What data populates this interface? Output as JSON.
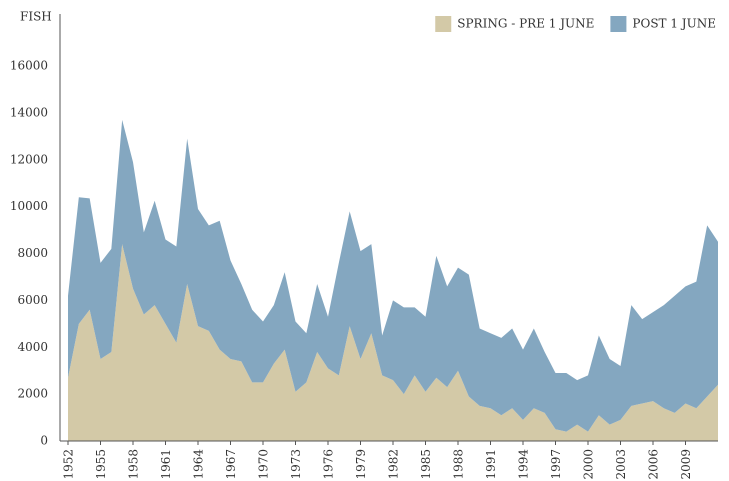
{
  "chart_data": {
    "type": "stacked_area",
    "y_label": "FISH",
    "x": [
      1952,
      1953,
      1954,
      1955,
      1956,
      1957,
      1958,
      1959,
      1960,
      1961,
      1962,
      1963,
      1964,
      1965,
      1966,
      1967,
      1968,
      1969,
      1970,
      1971,
      1972,
      1973,
      1974,
      1975,
      1976,
      1977,
      1978,
      1979,
      1980,
      1981,
      1982,
      1983,
      1984,
      1985,
      1986,
      1987,
      1988,
      1989,
      1990,
      1991,
      1992,
      1993,
      1994,
      1995,
      1996,
      1997,
      1998,
      1999,
      2000,
      2001,
      2002,
      2003,
      2004,
      2005,
      2006,
      2007,
      2008,
      2009,
      2010,
      2011,
      2012
    ],
    "series": [
      {
        "name": "SPRING - PRE 1 JUNE",
        "color": "#d3c9a7",
        "values": [
          2700,
          5000,
          5600,
          3500,
          3800,
          8400,
          6500,
          5400,
          5800,
          5000,
          4200,
          6700,
          4900,
          4700,
          3900,
          3500,
          3400,
          2500,
          2500,
          3300,
          3900,
          2100,
          2500,
          3800,
          3100,
          2800,
          4900,
          3500,
          4600,
          2800,
          2600,
          2000,
          2800,
          2100,
          2700,
          2300,
          3000,
          1900,
          1500,
          1400,
          1100,
          1400,
          900,
          1400,
          1200,
          500,
          400,
          700,
          400,
          1100,
          700,
          900,
          1500,
          1600,
          1700,
          1400,
          1200,
          1600,
          1400,
          1900,
          2400
        ]
      },
      {
        "name": "POST 1 JUNE",
        "color": "#84a7c0",
        "values": [
          3500,
          5400,
          4750,
          4100,
          4400,
          5300,
          5400,
          3500,
          4450,
          3600,
          4100,
          6200,
          5000,
          4500,
          5500,
          4200,
          3300,
          3100,
          2600,
          2500,
          3300,
          3000,
          2100,
          2900,
          2200,
          4800,
          4900,
          4600,
          3800,
          1700,
          3400,
          3700,
          2900,
          3200,
          5200,
          4300,
          4400,
          5200,
          3300,
          3200,
          3300,
          3400,
          3000,
          3400,
          2600,
          2400,
          2500,
          1900,
          2400,
          3400,
          2800,
          2300,
          4300,
          3600,
          3800,
          4400,
          5000,
          5000,
          5400,
          7300,
          6100
        ]
      }
    ],
    "xlim": [
      1952,
      2012
    ],
    "xticks": [
      1952,
      1955,
      1958,
      1961,
      1964,
      1967,
      1970,
      1973,
      1976,
      1979,
      1982,
      1985,
      1988,
      1991,
      1994,
      1997,
      2000,
      2003,
      2006,
      2009
    ],
    "ylim": [
      0,
      16000
    ],
    "yticks": [
      0,
      2000,
      4000,
      6000,
      8000,
      10000,
      12000,
      14000,
      16000
    ],
    "grid": false,
    "legend": "top-right"
  }
}
